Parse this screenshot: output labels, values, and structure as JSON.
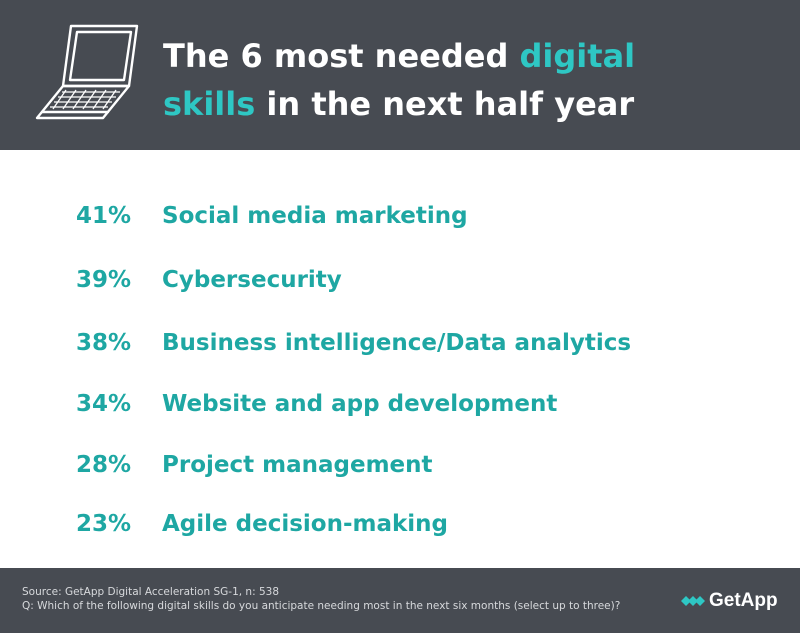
{
  "title": {
    "part1": "The 6 most needed ",
    "accent1": "digital",
    "accent2": "skills",
    "part2": " in the next half year"
  },
  "chart_data": {
    "type": "table",
    "title": "The 6 most needed digital skills in the next half year",
    "unit": "%",
    "categories": [
      "Social media marketing",
      "Cybersecurity",
      "Business intelligence/Data analytics",
      "Website and app development",
      "Project management",
      "Agile decision-making"
    ],
    "values": [
      41,
      39,
      38,
      34,
      28,
      23
    ],
    "labels": [
      "41%",
      "39%",
      "38%",
      "34%",
      "28%",
      "23%"
    ]
  },
  "footer": {
    "source": "Source: GetApp Digital Acceleration SG-1, n: 538",
    "question": "Q: Which of the following digital skills do you anticipate needing most in the next six months (select up to three)?",
    "brand": "GetApp"
  },
  "colors": {
    "header_bg": "#474b52",
    "accent": "#2ec7c4",
    "value_text": "#1ea7a3",
    "body_bg": "#ffffff"
  },
  "icons": {
    "header": "laptop-icon",
    "brand": "getapp-logo-icon"
  }
}
